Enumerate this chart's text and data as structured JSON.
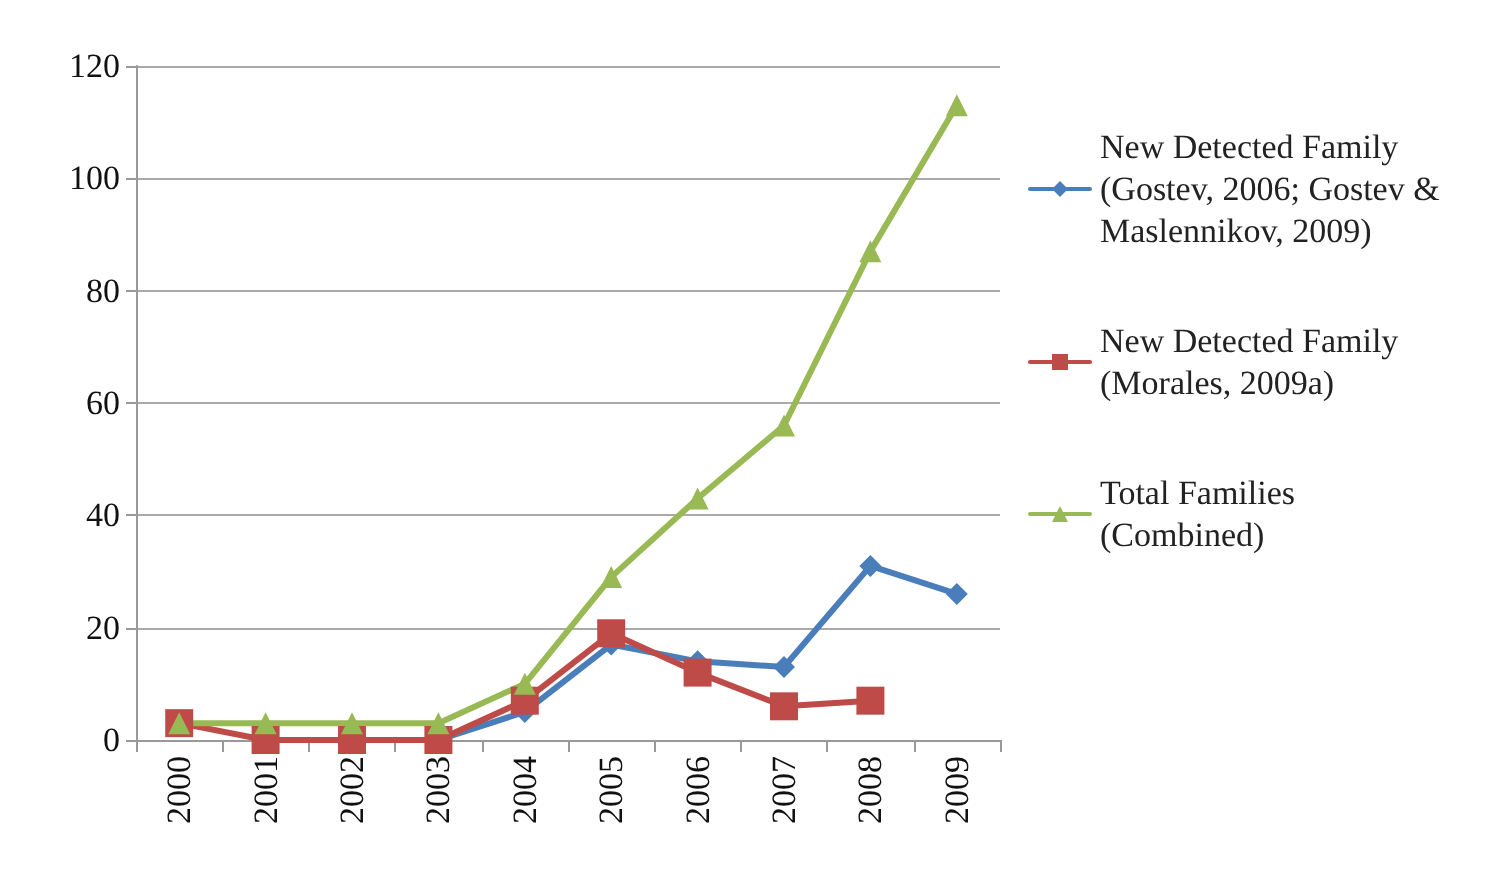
{
  "chart_data": {
    "type": "line",
    "categories": [
      "2000",
      "2001",
      "2002",
      "2003",
      "2004",
      "2005",
      "2006",
      "2007",
      "2008",
      "2009"
    ],
    "series": [
      {
        "name": "New Detected Family (Gostev, 2006; Gostev & Maslennikov, 2009)",
        "color": "#4a7ebb",
        "marker": "diamond",
        "values": [
          null,
          0,
          0,
          0,
          5,
          17,
          14,
          13,
          31,
          26
        ]
      },
      {
        "name": "New Detected Family (Morales, 2009a)",
        "color": "#be4b48",
        "marker": "square",
        "values": [
          3,
          0,
          0,
          0,
          7,
          19,
          12,
          6,
          7,
          null
        ]
      },
      {
        "name": "Total Families (Combined)",
        "color": "#98b954",
        "marker": "triangle",
        "values": [
          3,
          3,
          3,
          3,
          10,
          29,
          43,
          56,
          87,
          113
        ]
      }
    ],
    "ylim": [
      0,
      120
    ],
    "yticks": [
      0,
      20,
      40,
      60,
      80,
      100,
      120
    ],
    "grid": "y",
    "legend": "right",
    "line_style": "solid"
  }
}
